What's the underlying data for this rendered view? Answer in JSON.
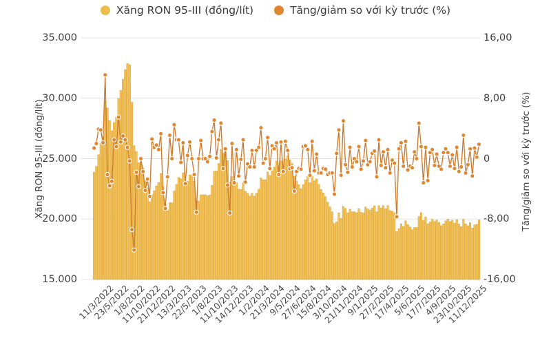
{
  "legend": {
    "items": [
      {
        "label": "Xăng RON 95-III (đồng/lít)",
        "color": "#ECBE4E"
      },
      {
        "label": "Tăng/giảm so với kỳ trước (%)",
        "color": "#E0862F"
      }
    ]
  },
  "left_axis": {
    "title": "Xăng RON 95-III (đồng/lít)",
    "tick_labels": [
      "35.000",
      "30.000",
      "25.000",
      "20.000",
      "15.000"
    ],
    "min": 15000,
    "max": 35000
  },
  "right_axis": {
    "title": "Tăng/giảm so với kỳ trước (%)",
    "tick_labels": [
      "16,00",
      "8,00",
      "0",
      "-8,00",
      "-16,00"
    ],
    "min": -16,
    "max": 16
  },
  "colors": {
    "bar_fill": "#F3C355",
    "bar_stroke": "#DFA63E",
    "line": "#CE7D30",
    "dot_fill": "#E0862F",
    "dot_ring": "#FFFFFF",
    "grid": "#E3E3E3",
    "background": "#FFFFFF"
  },
  "chart_data": {
    "type": "bar",
    "combo": "bar+line",
    "grid": "horizontal",
    "legend_position": "top",
    "x_labels": [
      "11/3/2022",
      "23/5/2022",
      "1/8/2022",
      "11/10/2022",
      "21/12/2022",
      "13/3/2023",
      "22/5/2023",
      "1/8/2023",
      "11/10/2023",
      "14/12/2023",
      "1/2/2024",
      "21/3/2024",
      "9/5/2024",
      "27/6/2024",
      "15/8/2024",
      "3/10/2024",
      "21/11/2024",
      "9/1/2025",
      "27/2/2025",
      "17/4/2025",
      "5/6/2025",
      "17/7/2025",
      "4/9/2025",
      "23/10/2025",
      "11/12/2025"
    ],
    "label_offset": 5,
    "label_every": 7,
    "series": [
      {
        "name": "Xăng RON 95-III (đồng/lít)",
        "type": "bar",
        "axis": "left",
        "unit": "đồng/lít",
        "values": [
          23880,
          24360,
          25320,
          26290,
          26830,
          29820,
          29190,
          28150,
          27310,
          27990,
          28430,
          29980,
          30650,
          31570,
          32370,
          32870,
          32760,
          29670,
          26070,
          25600,
          24660,
          24660,
          24230,
          23210,
          22580,
          21440,
          22000,
          22340,
          22750,
          23020,
          23780,
          22700,
          21200,
          20700,
          21350,
          21350,
          22320,
          22870,
          23440,
          23330,
          23810,
          23030,
          23130,
          23640,
          23630,
          23130,
          21490,
          21500,
          22010,
          22010,
          22010,
          21920,
          21990,
          22790,
          23960,
          23990,
          24600,
          25750,
          25420,
          25740,
          24840,
          23040,
          23510,
          22750,
          23020,
          22480,
          22450,
          23020,
          22300,
          22140,
          21900,
          22150,
          21900,
          22150,
          22480,
          23400,
          23260,
          23260,
          23900,
          23600,
          24000,
          24300,
          24810,
          24280,
          24810,
          24400,
          24950,
          25230,
          24910,
          24600,
          23540,
          23140,
          22840,
          22510,
          22860,
          23250,
          23520,
          23010,
          23550,
          23170,
          23320,
          22880,
          22450,
          22160,
          21850,
          21400,
          21000,
          20600,
          19630,
          19760,
          20510,
          20060,
          21060,
          20890,
          20520,
          20820,
          20600,
          20610,
          20530,
          20860,
          20560,
          20500,
          21000,
          20840,
          20750,
          20900,
          21100,
          20600,
          21110,
          20920,
          21110,
          20850,
          21110,
          20700,
          20650,
          20530,
          18950,
          19200,
          19600,
          19400,
          19850,
          19550,
          19350,
          19120,
          19300,
          19300,
          20210,
          20530,
          19880,
          20180,
          19600,
          19750,
          19980,
          19800,
          19920,
          19720,
          19450,
          19600,
          19850,
          20000,
          19800,
          19900,
          19650,
          19940,
          19600,
          19380,
          19980,
          19600,
          19450,
          19700,
          19250,
          19520,
          19550,
          19930
        ]
      },
      {
        "name": "Tăng/giảm so với kỳ trước (%)",
        "type": "line",
        "axis": "right",
        "unit": "%",
        "values": [
          1.4,
          2.0,
          3.9,
          3.8,
          2.1,
          11.1,
          -2.1,
          -3.6,
          -3.0,
          2.5,
          1.6,
          5.5,
          2.2,
          3.0,
          2.5,
          1.5,
          -0.3,
          -9.4,
          -12.1,
          -1.8,
          -3.7,
          0.0,
          -1.7,
          -4.2,
          -2.7,
          -5.0,
          2.6,
          1.5,
          1.8,
          1.2,
          3.3,
          -4.5,
          -6.6,
          -2.4,
          3.1,
          0.0,
          4.5,
          2.5,
          2.5,
          -0.5,
          2.1,
          -3.3,
          0.4,
          2.2,
          0.0,
          -2.1,
          -7.1,
          0.0,
          2.4,
          0.0,
          0.0,
          -0.4,
          0.3,
          3.6,
          5.1,
          0.1,
          2.5,
          4.7,
          -1.3,
          1.3,
          -3.5,
          -7.2,
          2.0,
          -3.2,
          1.2,
          -2.3,
          -0.1,
          2.5,
          -3.1,
          -0.7,
          -1.1,
          1.1,
          -1.1,
          1.1,
          1.5,
          4.1,
          -0.6,
          0.0,
          2.8,
          -1.3,
          1.7,
          1.3,
          2.1,
          -2.1,
          2.2,
          -1.7,
          2.3,
          1.1,
          -1.3,
          -1.2,
          -4.3,
          -1.7,
          -1.3,
          -1.4,
          1.6,
          1.7,
          1.2,
          -2.2,
          2.3,
          -1.6,
          0.6,
          -1.9,
          -1.9,
          -1.3,
          -1.4,
          -2.1,
          -1.9,
          -1.9,
          -4.7,
          0.7,
          3.8,
          -2.2,
          5.0,
          -0.8,
          -1.8,
          1.5,
          -1.1,
          0.0,
          -0.4,
          1.6,
          -1.4,
          -0.3,
          2.4,
          -0.8,
          -0.4,
          0.7,
          1.0,
          -2.4,
          2.5,
          -0.9,
          0.9,
          -1.2,
          1.2,
          -1.9,
          -0.2,
          -0.6,
          -7.7,
          1.3,
          2.1,
          -1.0,
          2.3,
          -1.5,
          -1.0,
          -1.2,
          0.9,
          0.0,
          4.7,
          1.6,
          -3.2,
          1.5,
          -2.9,
          0.8,
          1.2,
          -0.9,
          0.6,
          -1.0,
          -1.4,
          0.8,
          1.3,
          0.8,
          -1.0,
          0.5,
          -1.3,
          1.5,
          -1.7,
          -1.1,
          3.1,
          -1.9,
          -0.8,
          1.3,
          -2.3,
          1.4,
          0.2,
          1.9
        ]
      }
    ]
  }
}
